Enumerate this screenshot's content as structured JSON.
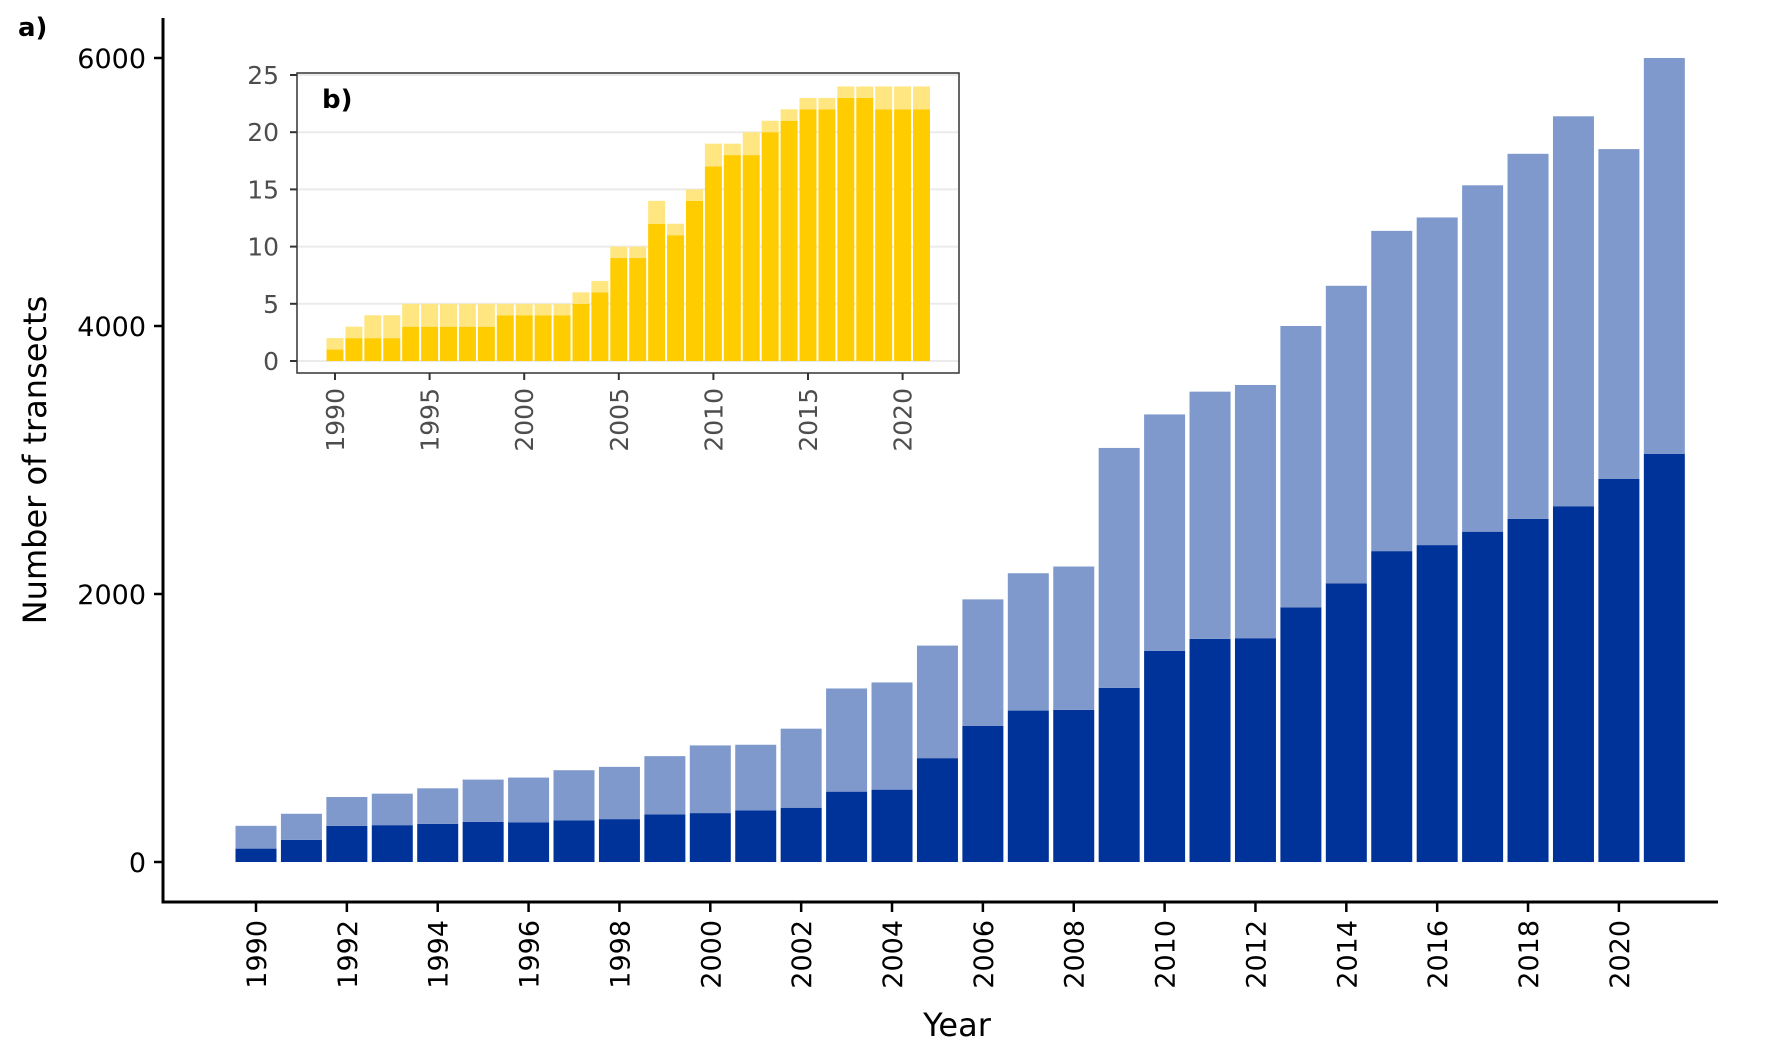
{
  "colors": {
    "main_dark": "#003399",
    "main_light": "#7f99cc",
    "inset_dark": "#ffcc00",
    "inset_light": "#ffe680",
    "inset_grid": "#ebebeb"
  },
  "chart_data": [
    {
      "type": "bar",
      "stacked": true,
      "panel_label": "a)",
      "xlabel": "Year",
      "ylabel": "Number of transects",
      "ylim": [
        0,
        6000
      ],
      "yticks": [
        0,
        2000,
        4000,
        6000
      ],
      "xtick_labels": [
        "1990",
        "1992",
        "1994",
        "1996",
        "1998",
        "2000",
        "2002",
        "2004",
        "2006",
        "2008",
        "2010",
        "2012",
        "2014",
        "2016",
        "2018",
        "2020"
      ],
      "grid": false,
      "categories": [
        1990,
        1991,
        1992,
        1993,
        1994,
        1995,
        1996,
        1997,
        1998,
        1999,
        2000,
        2001,
        2002,
        2003,
        2004,
        2005,
        2006,
        2007,
        2008,
        2009,
        2010,
        2011,
        2012,
        2013,
        2014,
        2015,
        2016,
        2017,
        2018,
        2019,
        2020,
        2021
      ],
      "series": [
        {
          "color": "#003399",
          "values": [
            100,
            165,
            270,
            275,
            285,
            300,
            295,
            310,
            320,
            355,
            365,
            385,
            405,
            525,
            540,
            775,
            1015,
            1130,
            1135,
            1300,
            1575,
            1665,
            1670,
            1900,
            2080,
            2320,
            2365,
            2465,
            2560,
            2655,
            2860,
            3045
          ]
        },
        {
          "color": "#7f99cc",
          "values": [
            170,
            195,
            215,
            235,
            265,
            315,
            335,
            375,
            390,
            435,
            505,
            490,
            590,
            770,
            800,
            840,
            945,
            1025,
            1070,
            1790,
            1765,
            1845,
            1890,
            2100,
            2220,
            2390,
            2445,
            2585,
            2725,
            2910,
            2460,
            2955
          ]
        }
      ]
    },
    {
      "type": "bar",
      "stacked": true,
      "panel_label": "b)",
      "xlabel": "",
      "ylabel": "",
      "ylim": [
        0,
        25
      ],
      "yticks": [
        0,
        5,
        10,
        15,
        20,
        25
      ],
      "xtick_labels": [
        "1990",
        "1995",
        "2000",
        "2005",
        "2010",
        "2015",
        "2020"
      ],
      "grid": true,
      "categories": [
        1990,
        1991,
        1992,
        1993,
        1994,
        1995,
        1996,
        1997,
        1998,
        1999,
        2000,
        2001,
        2002,
        2003,
        2004,
        2005,
        2006,
        2007,
        2008,
        2009,
        2010,
        2011,
        2012,
        2013,
        2014,
        2015,
        2016,
        2017,
        2018,
        2019,
        2020,
        2021
      ],
      "series": [
        {
          "color": "#ffcc00",
          "values": [
            1,
            2,
            2,
            2,
            3,
            3,
            3,
            3,
            3,
            4,
            4,
            4,
            4,
            5,
            6,
            9,
            9,
            12,
            11,
            14,
            17,
            18,
            18,
            20,
            21,
            22,
            22,
            23,
            23,
            22,
            22,
            22
          ]
        },
        {
          "color": "#ffe680",
          "values": [
            1,
            1,
            2,
            2,
            2,
            2,
            2,
            2,
            2,
            1,
            1,
            1,
            1,
            1,
            1,
            1,
            1,
            2,
            1,
            1,
            2,
            1,
            2,
            1,
            1,
            1,
            1,
            1,
            1,
            2,
            2,
            2
          ]
        }
      ]
    }
  ]
}
